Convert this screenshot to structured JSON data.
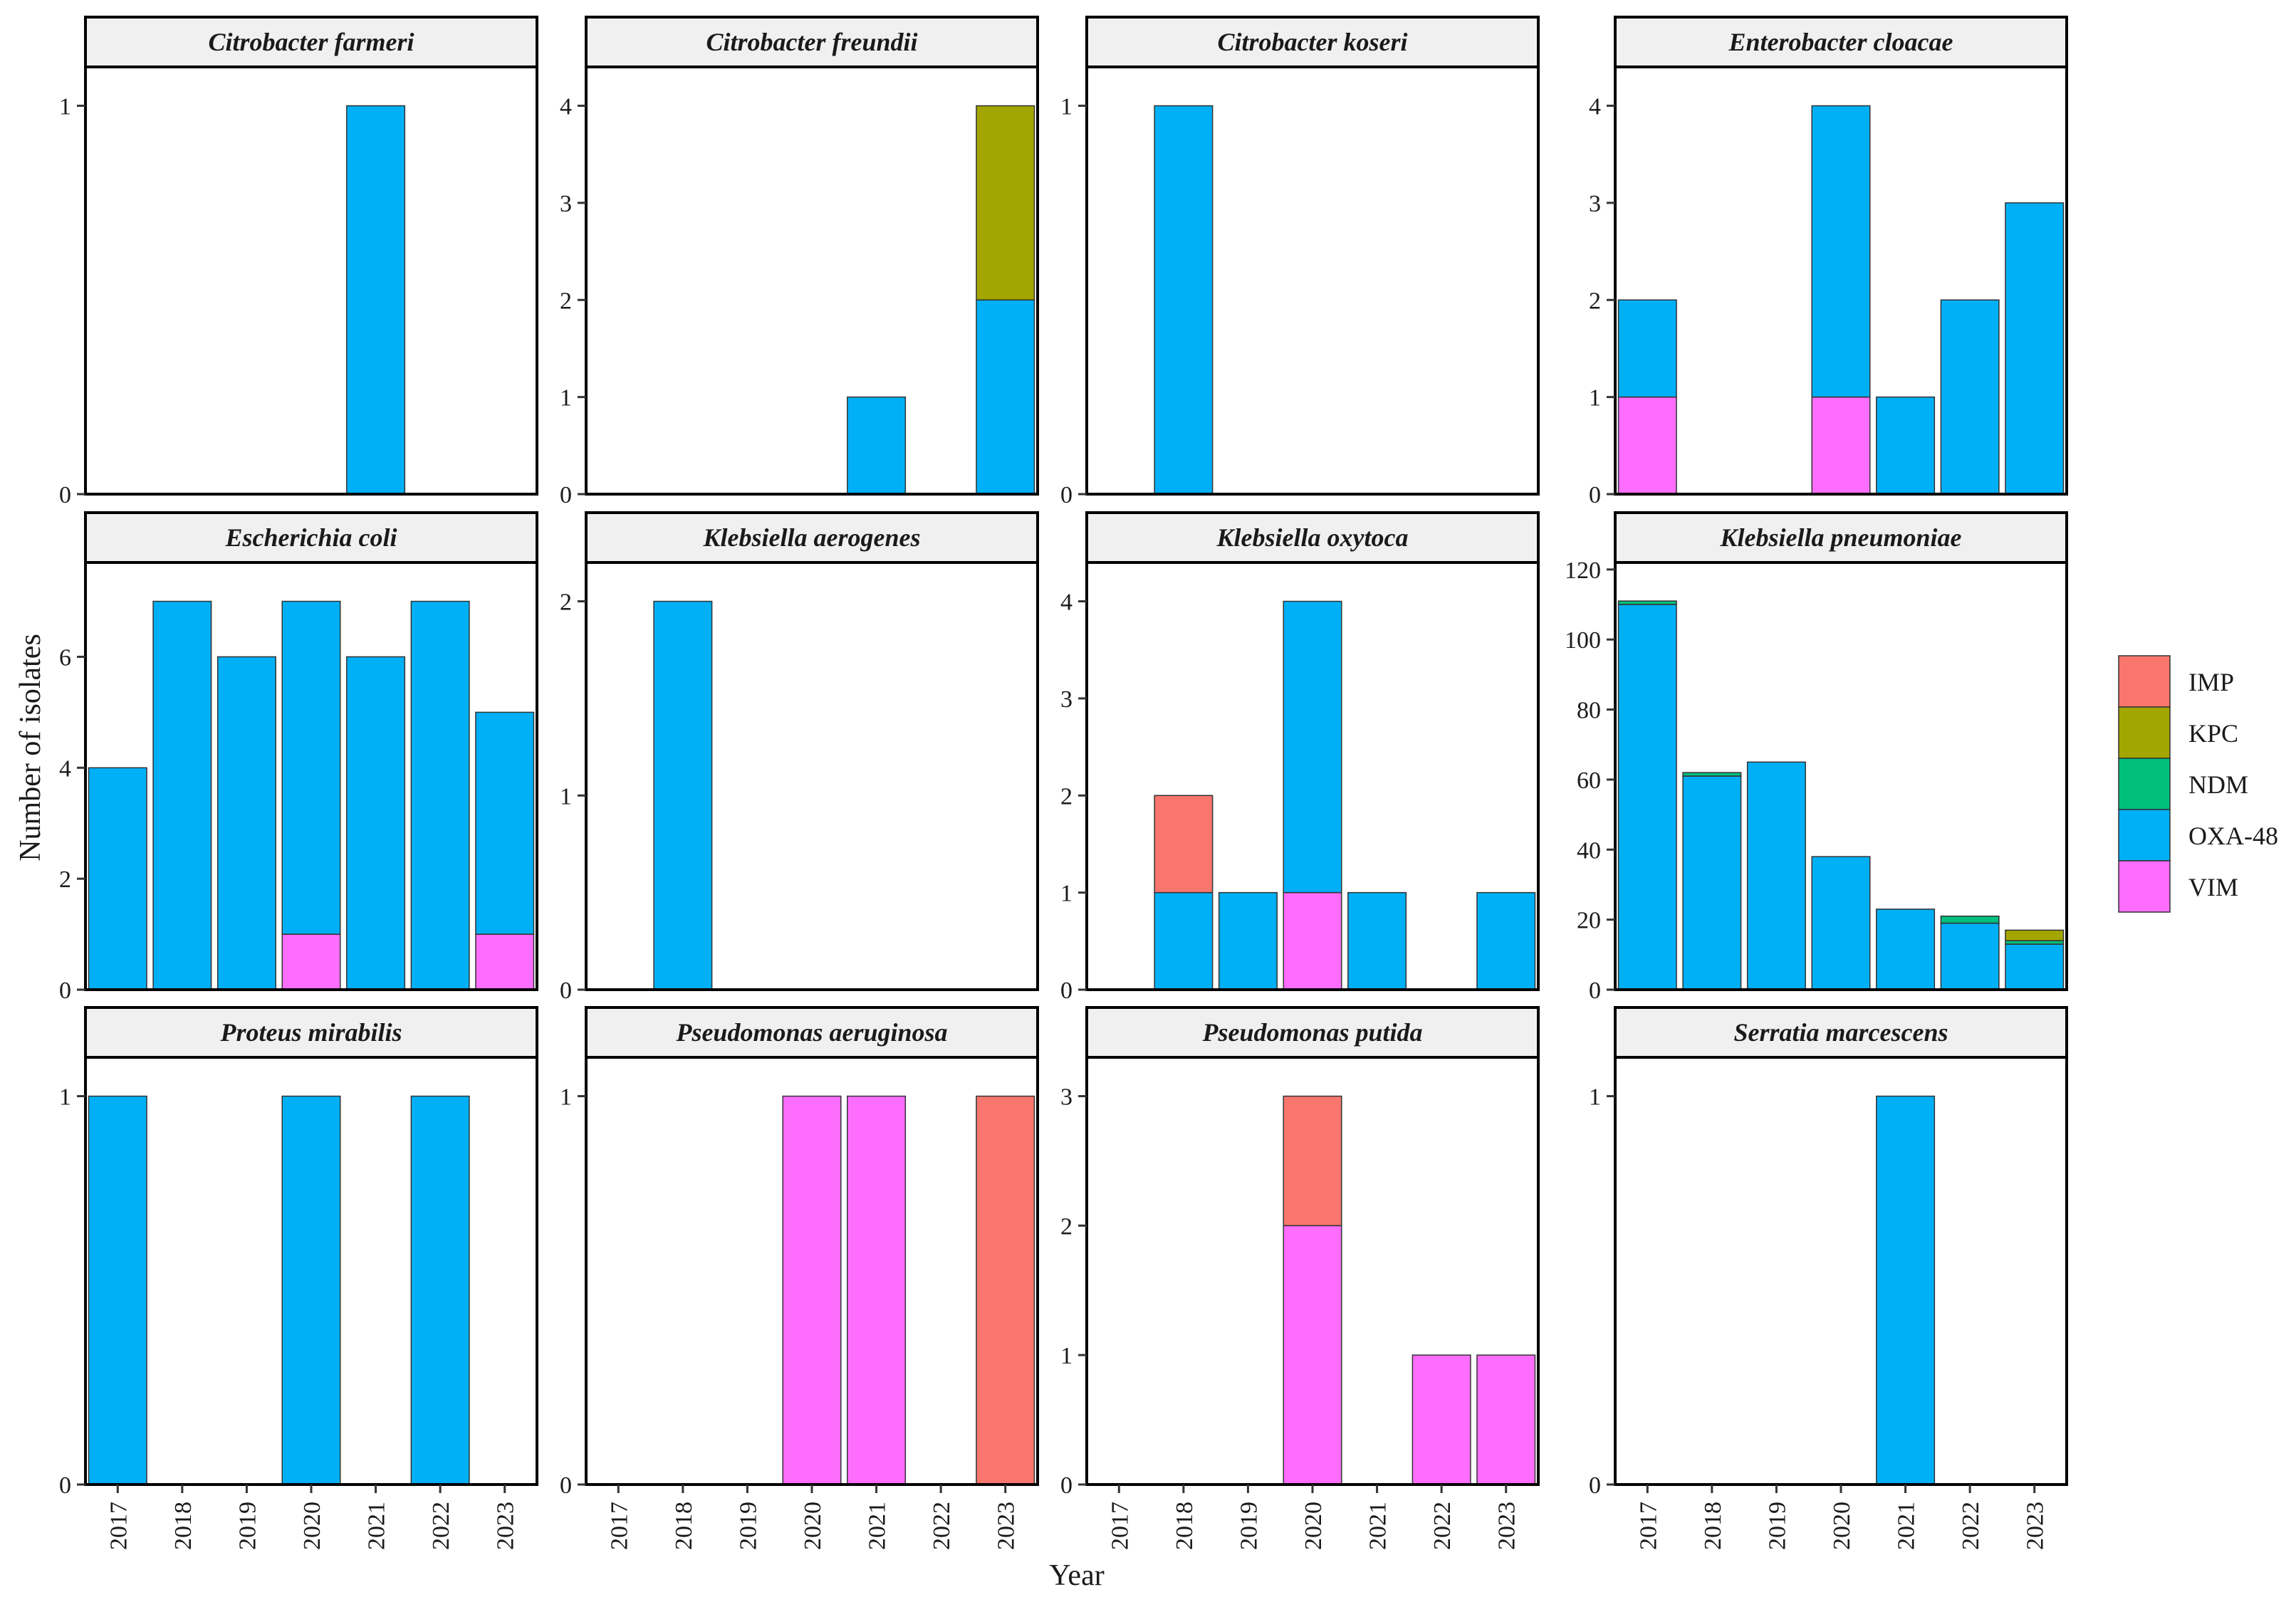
{
  "chart_data": {
    "type": "bar",
    "stacked": true,
    "xlabel": "Year",
    "ylabel": "Number of isolates",
    "categories": [
      "2017",
      "2018",
      "2019",
      "2020",
      "2021",
      "2022",
      "2023"
    ],
    "legend": {
      "position": "right",
      "entries": [
        {
          "name": "IMP",
          "color": "#F8766D"
        },
        {
          "name": "KPC",
          "color": "#A3A500"
        },
        {
          "name": "NDM",
          "color": "#00BF7D"
        },
        {
          "name": "OXA-48",
          "color": "#00B0F6"
        },
        {
          "name": "VIM",
          "color": "#FF6DFF"
        }
      ]
    },
    "stack_order": [
      "VIM",
      "OXA-48",
      "NDM",
      "KPC",
      "IMP"
    ],
    "facets": [
      {
        "title": "Citrobacter farmeri",
        "ylim": [
          0,
          1.1
        ],
        "yticks": [
          0,
          1
        ],
        "series": {
          "OXA-48": [
            0,
            0,
            0,
            0,
            1,
            0,
            0
          ]
        }
      },
      {
        "title": "Citrobacter freundii",
        "ylim": [
          0,
          4.4
        ],
        "yticks": [
          0,
          1,
          2,
          3,
          4
        ],
        "series": {
          "OXA-48": [
            0,
            0,
            0,
            0,
            1,
            0,
            2
          ],
          "KPC": [
            0,
            0,
            0,
            0,
            0,
            0,
            2
          ]
        }
      },
      {
        "title": "Citrobacter koseri",
        "ylim": [
          0,
          1.1
        ],
        "yticks": [
          0,
          1
        ],
        "series": {
          "OXA-48": [
            0,
            1,
            0,
            0,
            0,
            0,
            0
          ]
        }
      },
      {
        "title": "Enterobacter cloacae",
        "ylim": [
          0,
          4.4
        ],
        "yticks": [
          0,
          1,
          2,
          3,
          4
        ],
        "series": {
          "VIM": [
            1,
            0,
            0,
            1,
            0,
            0,
            0
          ],
          "OXA-48": [
            1,
            0,
            0,
            3,
            1,
            2,
            3
          ]
        }
      },
      {
        "title": "Escherichia coli",
        "ylim": [
          0,
          7.7
        ],
        "yticks": [
          0,
          2,
          4,
          6
        ],
        "series": {
          "VIM": [
            0,
            0,
            0,
            1,
            0,
            0,
            1
          ],
          "OXA-48": [
            4,
            7,
            6,
            6,
            6,
            7,
            4
          ]
        }
      },
      {
        "title": "Klebsiella aerogenes",
        "ylim": [
          0,
          2.2
        ],
        "yticks": [
          0,
          1,
          2
        ],
        "series": {
          "OXA-48": [
            0,
            2,
            0,
            0,
            0,
            0,
            0
          ]
        }
      },
      {
        "title": "Klebsiella oxytoca",
        "ylim": [
          0,
          4.4
        ],
        "yticks": [
          0,
          1,
          2,
          3,
          4
        ],
        "series": {
          "VIM": [
            0,
            0,
            0,
            1,
            0,
            0,
            0
          ],
          "OXA-48": [
            0,
            1,
            1,
            3,
            1,
            0,
            1
          ],
          "IMP": [
            0,
            1,
            0,
            0,
            0,
            0,
            0
          ]
        }
      },
      {
        "title": "Klebsiella pneumoniae",
        "ylim": [
          0,
          122
        ],
        "yticks": [
          0,
          20,
          40,
          60,
          80,
          100,
          120
        ],
        "series": {
          "OXA-48": [
            110,
            61,
            65,
            38,
            23,
            19,
            13
          ],
          "NDM": [
            1,
            1,
            0,
            0,
            0,
            2,
            1
          ],
          "KPC": [
            0,
            0,
            0,
            0,
            0,
            0,
            3
          ]
        }
      },
      {
        "title": "Proteus mirabilis",
        "ylim": [
          0,
          1.1
        ],
        "yticks": [
          0,
          1
        ],
        "series": {
          "OXA-48": [
            1,
            0,
            0,
            1,
            0,
            1,
            0
          ]
        }
      },
      {
        "title": "Pseudomonas aeruginosa",
        "ylim": [
          0,
          1.1
        ],
        "yticks": [
          0,
          1
        ],
        "series": {
          "VIM": [
            0,
            0,
            0,
            1,
            1,
            0,
            0
          ],
          "IMP": [
            0,
            0,
            0,
            0,
            0,
            0,
            1
          ]
        }
      },
      {
        "title": "Pseudomonas putida",
        "ylim": [
          0,
          3.3
        ],
        "yticks": [
          0,
          1,
          2,
          3
        ],
        "series": {
          "VIM": [
            0,
            0,
            0,
            2,
            0,
            1,
            1
          ],
          "IMP": [
            0,
            0,
            0,
            1,
            0,
            0,
            0
          ]
        }
      },
      {
        "title": "Serratia marcescens",
        "ylim": [
          0,
          1.1
        ],
        "yticks": [
          0,
          1
        ],
        "series": {
          "OXA-48": [
            0,
            0,
            0,
            0,
            1,
            0,
            0
          ]
        }
      }
    ]
  }
}
